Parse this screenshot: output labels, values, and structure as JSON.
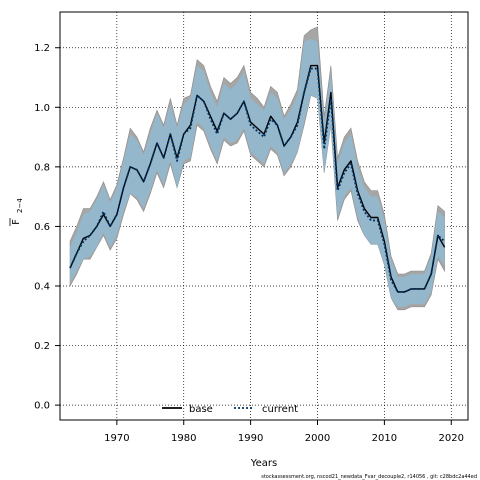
{
  "chart_data": {
    "type": "line",
    "xlabel": "Years",
    "ylabel_main": "F",
    "ylabel_sub": "2−4",
    "xlim": [
      1961.5,
      2022.5
    ],
    "ylim": [
      -0.05,
      1.32
    ],
    "xticks": [
      1970,
      1980,
      1990,
      2000,
      2010,
      2020
    ],
    "yticks": [
      0.0,
      0.2,
      0.4,
      0.6,
      0.8,
      1.0,
      1.2
    ],
    "ytick_labels": [
      "0.0",
      "0.2",
      "0.4",
      "0.6",
      "0.8",
      "1.0",
      "1.2"
    ],
    "grid": true,
    "x": [
      1963,
      1964,
      1965,
      1966,
      1967,
      1968,
      1969,
      1970,
      1971,
      1972,
      1973,
      1974,
      1975,
      1976,
      1977,
      1978,
      1979,
      1980,
      1981,
      1982,
      1983,
      1984,
      1985,
      1986,
      1987,
      1988,
      1989,
      1990,
      1991,
      1992,
      1993,
      1994,
      1995,
      1996,
      1997,
      1998,
      1999,
      2000,
      2001,
      2002,
      2003,
      2004,
      2005,
      2006,
      2007,
      2008,
      2009,
      2010,
      2011,
      2012,
      2013,
      2014,
      2015,
      2016,
      2017,
      2018,
      2019
    ],
    "series": [
      {
        "name": "base",
        "style": "solid",
        "color": "#000000",
        "band_color": "#a6a6a6",
        "values": [
          0.46,
          0.51,
          0.56,
          0.57,
          0.6,
          0.64,
          0.6,
          0.64,
          0.73,
          0.8,
          0.79,
          0.75,
          0.81,
          0.88,
          0.83,
          0.91,
          0.83,
          0.91,
          0.94,
          1.04,
          1.02,
          0.97,
          0.92,
          0.98,
          0.96,
          0.98,
          1.02,
          0.95,
          0.93,
          0.91,
          0.97,
          0.94,
          0.87,
          0.9,
          0.95,
          1.05,
          1.14,
          1.14,
          0.88,
          1.05,
          0.73,
          0.79,
          0.82,
          0.72,
          0.66,
          0.63,
          0.63,
          0.55,
          0.43,
          0.38,
          0.38,
          0.39,
          0.39,
          0.39,
          0.44,
          0.57,
          0.53
        ],
        "lower": [
          0.4,
          0.44,
          0.49,
          0.49,
          0.53,
          0.57,
          0.52,
          0.56,
          0.64,
          0.71,
          0.69,
          0.65,
          0.71,
          0.78,
          0.73,
          0.81,
          0.73,
          0.81,
          0.82,
          0.94,
          0.92,
          0.86,
          0.81,
          0.89,
          0.87,
          0.88,
          0.92,
          0.84,
          0.82,
          0.8,
          0.86,
          0.84,
          0.77,
          0.8,
          0.85,
          0.94,
          1.04,
          1.03,
          0.78,
          0.94,
          0.62,
          0.69,
          0.72,
          0.62,
          0.57,
          0.54,
          0.54,
          0.47,
          0.36,
          0.32,
          0.32,
          0.33,
          0.33,
          0.33,
          0.37,
          0.49,
          0.45
        ],
        "upper": [
          0.55,
          0.6,
          0.66,
          0.66,
          0.7,
          0.75,
          0.69,
          0.74,
          0.83,
          0.93,
          0.9,
          0.85,
          0.93,
          0.99,
          0.94,
          1.03,
          0.94,
          1.03,
          1.04,
          1.16,
          1.14,
          1.07,
          1.02,
          1.1,
          1.08,
          1.1,
          1.14,
          1.05,
          1.03,
          1.0,
          1.07,
          1.05,
          0.97,
          1.01,
          1.06,
          1.24,
          1.26,
          1.27,
          0.97,
          1.14,
          0.83,
          0.9,
          0.93,
          0.82,
          0.75,
          0.72,
          0.72,
          0.64,
          0.5,
          0.44,
          0.44,
          0.45,
          0.45,
          0.45,
          0.51,
          0.67,
          0.65
        ]
      },
      {
        "name": "current",
        "style": "dotted",
        "color": "#003366",
        "band_color": "#8fbcd6",
        "values": [
          0.46,
          0.51,
          0.55,
          0.57,
          0.6,
          0.65,
          0.6,
          0.64,
          0.73,
          0.8,
          0.79,
          0.75,
          0.81,
          0.88,
          0.83,
          0.91,
          0.82,
          0.91,
          0.93,
          1.04,
          1.02,
          0.96,
          0.91,
          0.98,
          0.96,
          0.98,
          1.02,
          0.94,
          0.92,
          0.9,
          0.96,
          0.94,
          0.87,
          0.9,
          0.94,
          1.05,
          1.13,
          1.13,
          0.86,
          1.03,
          0.72,
          0.78,
          0.81,
          0.71,
          0.65,
          0.62,
          0.62,
          0.54,
          0.42,
          0.38,
          0.38,
          0.39,
          0.39,
          0.39,
          0.44,
          0.57,
          0.55
        ],
        "lower": [
          0.41,
          0.45,
          0.49,
          0.5,
          0.53,
          0.58,
          0.53,
          0.57,
          0.65,
          0.71,
          0.7,
          0.66,
          0.72,
          0.79,
          0.74,
          0.82,
          0.73,
          0.82,
          0.83,
          0.95,
          0.93,
          0.87,
          0.82,
          0.9,
          0.88,
          0.89,
          0.93,
          0.85,
          0.83,
          0.81,
          0.87,
          0.85,
          0.78,
          0.81,
          0.85,
          0.95,
          1.04,
          1.03,
          0.78,
          0.94,
          0.63,
          0.7,
          0.73,
          0.63,
          0.57,
          0.54,
          0.54,
          0.47,
          0.36,
          0.33,
          0.33,
          0.34,
          0.34,
          0.34,
          0.38,
          0.5,
          0.47
        ],
        "upper": [
          0.53,
          0.58,
          0.64,
          0.65,
          0.69,
          0.74,
          0.68,
          0.73,
          0.82,
          0.91,
          0.89,
          0.84,
          0.91,
          0.98,
          0.93,
          1.01,
          0.93,
          1.01,
          1.03,
          1.14,
          1.12,
          1.05,
          1.0,
          1.08,
          1.06,
          1.08,
          1.12,
          1.03,
          1.01,
          0.99,
          1.05,
          1.03,
          0.96,
          0.99,
          1.04,
          1.22,
          1.23,
          1.22,
          0.94,
          1.12,
          0.81,
          0.88,
          0.91,
          0.8,
          0.73,
          0.7,
          0.7,
          0.62,
          0.49,
          0.43,
          0.43,
          0.44,
          0.44,
          0.44,
          0.5,
          0.65,
          0.63
        ]
      }
    ],
    "legend": {
      "placement": "bottom-center",
      "items": [
        "base",
        "current"
      ]
    }
  },
  "caption": "stockassessment.org, nscod21_newdata_Fvar_decouple2, r14056 , git: c28bdc2a44ed"
}
